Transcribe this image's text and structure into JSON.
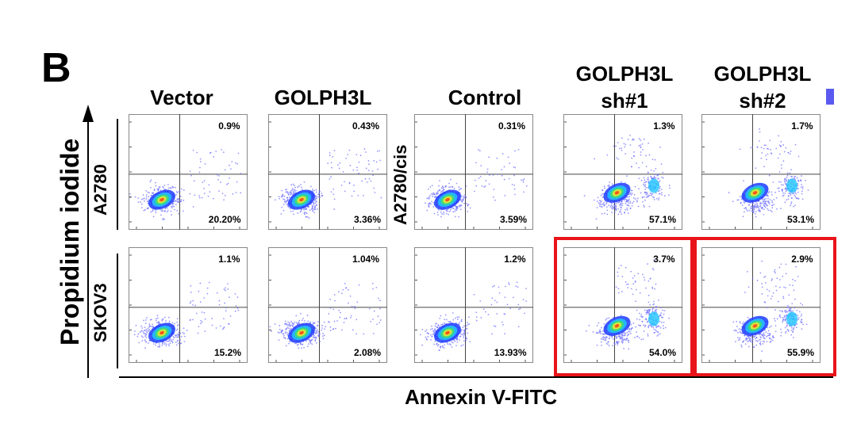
{
  "panel_label": "B",
  "column_titles": [
    "Vector",
    "GOLPH3L",
    "Control",
    "GOLPH3L\nsh#1",
    "GOLPH3L\nsh#2"
  ],
  "row_labels_left": [
    "A2780",
    "SKOV3"
  ],
  "row_label_cis": "A2780/cis",
  "y_axis_title": "Propidium iodide",
  "x_axis_title": "Annexin V-FITC",
  "colors": {
    "highlight": "#e8141a",
    "marker": "#5a5af0",
    "dots": "#6b6bff"
  },
  "chart_data": [
    {
      "type": "scatter",
      "row": "A2780",
      "column": "Vector",
      "upper_right": "0.9%",
      "lower_right": "20.20%"
    },
    {
      "type": "scatter",
      "row": "A2780",
      "column": "GOLPH3L",
      "upper_right": "0.43%",
      "lower_right": "3.36%"
    },
    {
      "type": "scatter",
      "row": "A2780/cis",
      "column": "Control",
      "upper_right": "0.31%",
      "lower_right": "3.59%"
    },
    {
      "type": "scatter",
      "row": "A2780/cis",
      "column": "GOLPH3L sh#1",
      "upper_right": "1.3%",
      "lower_right": "57.1%"
    },
    {
      "type": "scatter",
      "row": "A2780/cis",
      "column": "GOLPH3L sh#2",
      "upper_right": "1.7%",
      "lower_right": "53.1%"
    },
    {
      "type": "scatter",
      "row": "SKOV3",
      "column": "Vector",
      "upper_right": "1.1%",
      "lower_right": "15.2%"
    },
    {
      "type": "scatter",
      "row": "SKOV3",
      "column": "GOLPH3L",
      "upper_right": "1.04%",
      "lower_right": "2.08%"
    },
    {
      "type": "scatter",
      "row": "SKOV3",
      "column": "Control",
      "upper_right": "1.2%",
      "lower_right": "13.93%"
    },
    {
      "type": "scatter",
      "row": "SKOV3",
      "column": "GOLPH3L sh#1",
      "upper_right": "3.7%",
      "lower_right": "54.0%",
      "highlighted": true
    },
    {
      "type": "scatter",
      "row": "SKOV3",
      "column": "GOLPH3L sh#2",
      "upper_right": "2.9%",
      "lower_right": "55.9%",
      "highlighted": true
    }
  ]
}
